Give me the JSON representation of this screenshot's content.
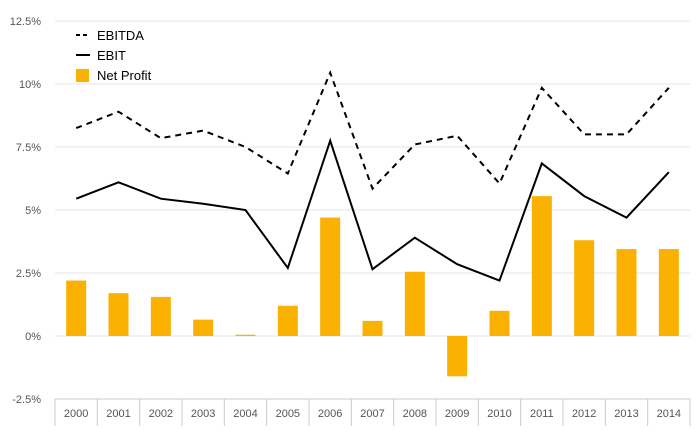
{
  "chart_data": {
    "type": "bar",
    "categories": [
      "2000",
      "2001",
      "2002",
      "2003",
      "2004",
      "2005",
      "2006",
      "2007",
      "2008",
      "2009",
      "2010",
      "2011",
      "2012",
      "2013",
      "2014"
    ],
    "yticks": [
      "-2.5%",
      "0%",
      "2.5%",
      "5%",
      "7.5%",
      "10%",
      "12.5%"
    ],
    "ylim": [
      -2.5,
      12.5
    ],
    "grid": true,
    "legend_position": "top-left",
    "series": [
      {
        "name": "EBITDA",
        "render": "line",
        "line_style": "dashed",
        "color": "#000000",
        "values": [
          8.25,
          8.9,
          7.85,
          8.15,
          7.5,
          6.45,
          10.45,
          5.85,
          7.6,
          7.95,
          6.05,
          9.85,
          8.0,
          8.0,
          9.85
        ]
      },
      {
        "name": "EBIT",
        "render": "line",
        "line_style": "solid",
        "color": "#000000",
        "values": [
          5.45,
          6.1,
          5.45,
          5.25,
          5.0,
          2.7,
          7.75,
          2.65,
          3.9,
          2.85,
          2.2,
          6.85,
          5.55,
          4.7,
          6.5
        ]
      },
      {
        "name": "Net Profit",
        "render": "bar",
        "color": "#FBB102",
        "values": [
          2.2,
          1.7,
          1.55,
          0.65,
          0.05,
          1.2,
          4.7,
          0.6,
          2.55,
          -1.6,
          1.0,
          5.55,
          3.8,
          3.45,
          3.45
        ]
      }
    ]
  }
}
